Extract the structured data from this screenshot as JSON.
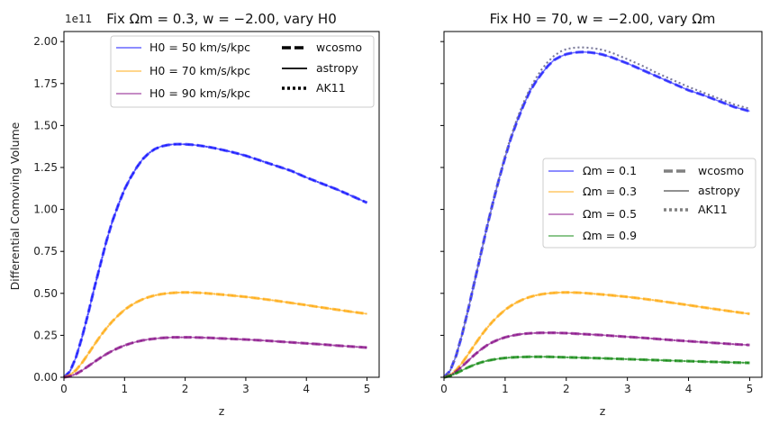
{
  "figure": {
    "ylabel": "Differential Comoving Volume",
    "offset_text": "1e11"
  },
  "chart_data": [
    {
      "type": "line",
      "title": "Fix Ωm = 0.3, w = −2.00, vary H0",
      "xlabel": "z",
      "ylabel": "Differential Comoving Volume",
      "xlim": [
        0,
        5.2
      ],
      "ylim": [
        0,
        2.06
      ],
      "y_scale_note": "1e11",
      "x_ticks": [
        "0",
        "1",
        "2",
        "3",
        "4",
        "5"
      ],
      "y_ticks": [
        "0.00",
        "0.25",
        "0.50",
        "0.75",
        "1.00",
        "1.25",
        "1.50",
        "1.75",
        "2.00"
      ],
      "grid": false,
      "legend_position": "top-right",
      "x": [
        0,
        0.1,
        0.2,
        0.3,
        0.4,
        0.5,
        0.6,
        0.7,
        0.8,
        0.9,
        1.0,
        1.1,
        1.2,
        1.3,
        1.4,
        1.5,
        1.6,
        1.7,
        1.8,
        1.9,
        2.0,
        2.1,
        2.2,
        2.3,
        2.4,
        2.5,
        2.75,
        3.0,
        3.25,
        3.5,
        3.75,
        4.0,
        4.25,
        4.5,
        4.75,
        5.0
      ],
      "series": [
        {
          "name": "H0 = 50 km/s/kpc",
          "color": "#0000ff",
          "values": [
            0,
            0.035,
            0.12,
            0.24,
            0.38,
            0.53,
            0.67,
            0.81,
            0.93,
            1.03,
            1.12,
            1.19,
            1.25,
            1.3,
            1.335,
            1.36,
            1.375,
            1.383,
            1.388,
            1.389,
            1.388,
            1.386,
            1.382,
            1.377,
            1.371,
            1.364,
            1.344,
            1.32,
            1.29,
            1.26,
            1.23,
            1.19,
            1.155,
            1.12,
            1.08,
            1.04
          ]
        },
        {
          "name": "H0 = 70 km/s/kpc",
          "color": "#ffa500",
          "values": [
            0,
            0.013,
            0.043,
            0.087,
            0.139,
            0.193,
            0.245,
            0.292,
            0.334,
            0.37,
            0.402,
            0.427,
            0.448,
            0.465,
            0.478,
            0.488,
            0.495,
            0.5,
            0.503,
            0.505,
            0.506,
            0.505,
            0.504,
            0.502,
            0.499,
            0.496,
            0.488,
            0.479,
            0.468,
            0.456,
            0.443,
            0.43,
            0.416,
            0.403,
            0.39,
            0.378
          ]
        },
        {
          "name": "H0 = 90 km/s/kpc",
          "color": "#800080",
          "values": [
            0,
            0.006,
            0.02,
            0.041,
            0.066,
            0.091,
            0.116,
            0.138,
            0.158,
            0.175,
            0.19,
            0.202,
            0.212,
            0.22,
            0.226,
            0.23,
            0.234,
            0.236,
            0.238,
            0.238,
            0.238,
            0.238,
            0.237,
            0.236,
            0.235,
            0.233,
            0.229,
            0.225,
            0.22,
            0.214,
            0.208,
            0.202,
            0.196,
            0.189,
            0.183,
            0.177
          ]
        }
      ],
      "line_styles": [
        "wcosmo",
        "astropy",
        "AK11"
      ]
    },
    {
      "type": "line",
      "title": "Fix H0 = 70, w = −2.00, vary Ωm",
      "xlabel": "z",
      "ylabel": "",
      "xlim": [
        0,
        5.2
      ],
      "ylim": [
        0,
        2.06
      ],
      "x_ticks": [
        "0",
        "1",
        "2",
        "3",
        "4",
        "5"
      ],
      "grid": false,
      "legend_position": "center-right",
      "x": [
        0,
        0.1,
        0.2,
        0.3,
        0.4,
        0.5,
        0.6,
        0.7,
        0.8,
        0.9,
        1.0,
        1.1,
        1.2,
        1.3,
        1.4,
        1.5,
        1.6,
        1.7,
        1.8,
        1.9,
        2.0,
        2.1,
        2.2,
        2.3,
        2.4,
        2.5,
        2.6,
        2.75,
        3.0,
        3.25,
        3.5,
        3.75,
        4.0,
        4.25,
        4.5,
        4.75,
        5.0
      ],
      "series": [
        {
          "name": "Ωm = 0.1",
          "color": "#0000ff",
          "values": [
            0,
            0.038,
            0.13,
            0.26,
            0.41,
            0.57,
            0.73,
            0.89,
            1.04,
            1.18,
            1.31,
            1.43,
            1.53,
            1.62,
            1.7,
            1.76,
            1.81,
            1.855,
            1.89,
            1.91,
            1.925,
            1.933,
            1.937,
            1.938,
            1.935,
            1.93,
            1.922,
            1.905,
            1.87,
            1.83,
            1.79,
            1.75,
            1.71,
            1.68,
            1.645,
            1.61,
            1.585
          ]
        },
        {
          "name": "Ωm = 0.3",
          "color": "#ffa500",
          "values": [
            0,
            0.013,
            0.043,
            0.087,
            0.139,
            0.193,
            0.245,
            0.292,
            0.334,
            0.37,
            0.402,
            0.427,
            0.448,
            0.465,
            0.478,
            0.488,
            0.495,
            0.5,
            0.503,
            0.505,
            0.506,
            0.505,
            0.504,
            0.502,
            0.499,
            0.496,
            0.493,
            0.488,
            0.479,
            0.468,
            0.456,
            0.443,
            0.43,
            0.416,
            0.403,
            0.39,
            0.378
          ]
        },
        {
          "name": "Ωm = 0.5",
          "color": "#800080",
          "values": [
            0,
            0.01,
            0.034,
            0.066,
            0.1,
            0.134,
            0.164,
            0.19,
            0.21,
            0.226,
            0.238,
            0.247,
            0.254,
            0.259,
            0.262,
            0.264,
            0.265,
            0.265,
            0.265,
            0.264,
            0.263,
            0.261,
            0.259,
            0.257,
            0.255,
            0.253,
            0.251,
            0.247,
            0.241,
            0.235,
            0.228,
            0.221,
            0.215,
            0.209,
            0.203,
            0.197,
            0.192
          ]
        },
        {
          "name": "Ωm = 0.9",
          "color": "#008000",
          "values": [
            0,
            0.008,
            0.024,
            0.042,
            0.06,
            0.075,
            0.088,
            0.098,
            0.105,
            0.111,
            0.115,
            0.118,
            0.12,
            0.121,
            0.122,
            0.122,
            0.122,
            0.122,
            0.121,
            0.12,
            0.119,
            0.118,
            0.117,
            0.116,
            0.115,
            0.114,
            0.113,
            0.111,
            0.108,
            0.105,
            0.102,
            0.099,
            0.096,
            0.093,
            0.091,
            0.088,
            0.086
          ]
        }
      ],
      "ak11_deviation_series": {
        "name": "Ωm = 0.1",
        "values": [
          0,
          0.038,
          0.13,
          0.26,
          0.41,
          0.57,
          0.73,
          0.89,
          1.04,
          1.185,
          1.32,
          1.44,
          1.545,
          1.635,
          1.715,
          1.78,
          1.835,
          1.88,
          1.915,
          1.94,
          1.955,
          1.962,
          1.965,
          1.965,
          1.962,
          1.957,
          1.95,
          1.933,
          1.895,
          1.855,
          1.81,
          1.77,
          1.73,
          1.695,
          1.66,
          1.625,
          1.6
        ]
      },
      "line_styles": [
        "wcosmo",
        "astropy",
        "AK11"
      ]
    }
  ],
  "legends": [
    {
      "entries": [
        "H0 = 50 km/s/kpc",
        "H0 = 70 km/s/kpc",
        "H0 = 90 km/s/kpc"
      ],
      "styles": [
        "wcosmo",
        "astropy",
        "AK11"
      ]
    },
    {
      "entries": [
        "Ωm = 0.1",
        "Ωm = 0.3",
        "Ωm = 0.5",
        "Ωm = 0.9"
      ],
      "styles": [
        "wcosmo",
        "astropy",
        "AK11"
      ]
    }
  ]
}
